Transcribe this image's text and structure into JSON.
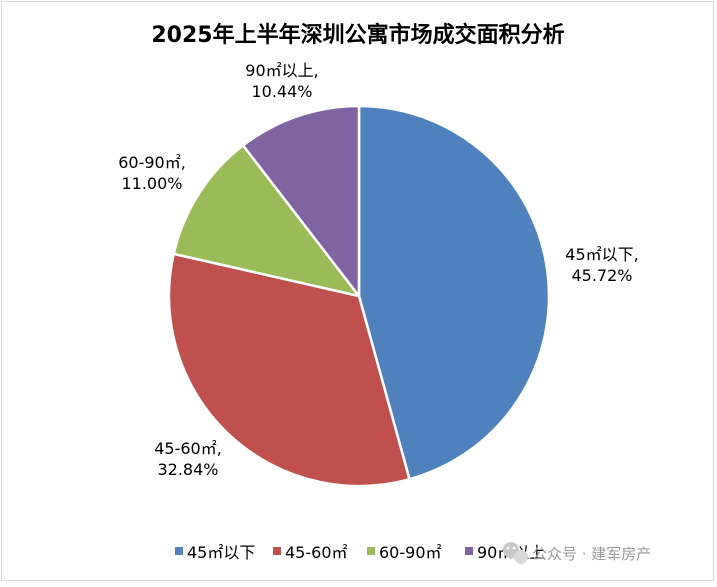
{
  "chart_data": {
    "type": "pie",
    "title": "2025年上半年深圳公寓市场成交面积分析",
    "series": [
      {
        "name": "45㎡以下",
        "value": 45.72,
        "label": "45.72%",
        "color": "#4f81bd"
      },
      {
        "name": "45-60㎡",
        "value": 32.84,
        "label": "32.84%",
        "color": "#c0504d"
      },
      {
        "name": "60-90㎡",
        "value": 11.0,
        "label": "11.00%",
        "color": "#9bbb59"
      },
      {
        "name": "90㎡以上",
        "value": 10.44,
        "label": "10.44%",
        "color": "#8064a2"
      }
    ],
    "legend_position": "bottom",
    "start": "12 o'clock",
    "direction": "clockwise"
  },
  "watermark": {
    "text": "公众号 · 建军房产",
    "icon": "wechat-icon"
  }
}
